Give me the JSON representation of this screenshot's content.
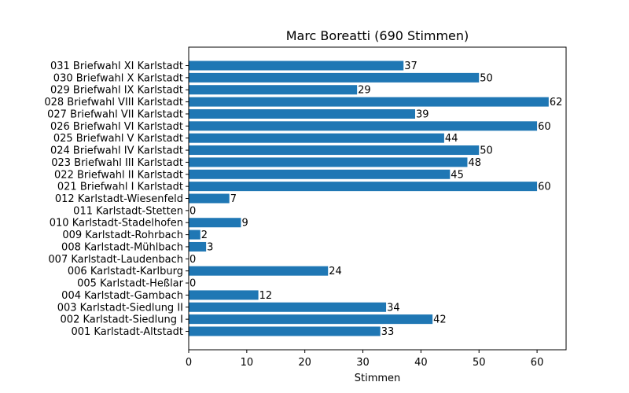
{
  "chart_data": {
    "type": "bar",
    "orientation": "horizontal",
    "title": "Marc Boreatti (690 Stimmen)",
    "xlabel": "Stimmen",
    "ylabel": "",
    "xlim": [
      0,
      65
    ],
    "xticks": [
      0,
      10,
      20,
      30,
      40,
      50,
      60
    ],
    "grid": false,
    "bar_color": "#1f77b4",
    "categories": [
      "031 Briefwahl XI Karlstadt",
      "030 Briefwahl X Karlstadt",
      "029 Briefwahl IX Karlstadt",
      "028 Briefwahl VIII Karlstadt",
      "027 Briefwahl VII Karlstadt",
      "026 Briefwahl VI Karlstadt",
      "025 Briefwahl V Karlstadt",
      "024 Briefwahl IV Karlstadt",
      "023 Briefwahl III Karlstadt",
      "022 Briefwahl II Karlstadt",
      "021 Briefwahl I Karlstadt",
      "012 Karlstadt-Wiesenfeld",
      "011 Karlstadt-Stetten",
      "010 Karlstadt-Stadelhofen",
      "009 Karlstadt-Rohrbach",
      "008 Karlstadt-Mühlbach",
      "007 Karlstadt-Laudenbach",
      "006 Karlstadt-Karlburg",
      "005 Karlstadt-Heßlar",
      "004 Karlstadt-Gambach",
      "003 Karlstadt-Siedlung II",
      "002 Karlstadt-Siedlung I",
      "001 Karlstadt-Altstadt"
    ],
    "values": [
      37,
      50,
      29,
      62,
      39,
      60,
      44,
      50,
      48,
      45,
      60,
      7,
      0,
      9,
      2,
      3,
      0,
      24,
      0,
      12,
      34,
      42,
      33
    ]
  }
}
